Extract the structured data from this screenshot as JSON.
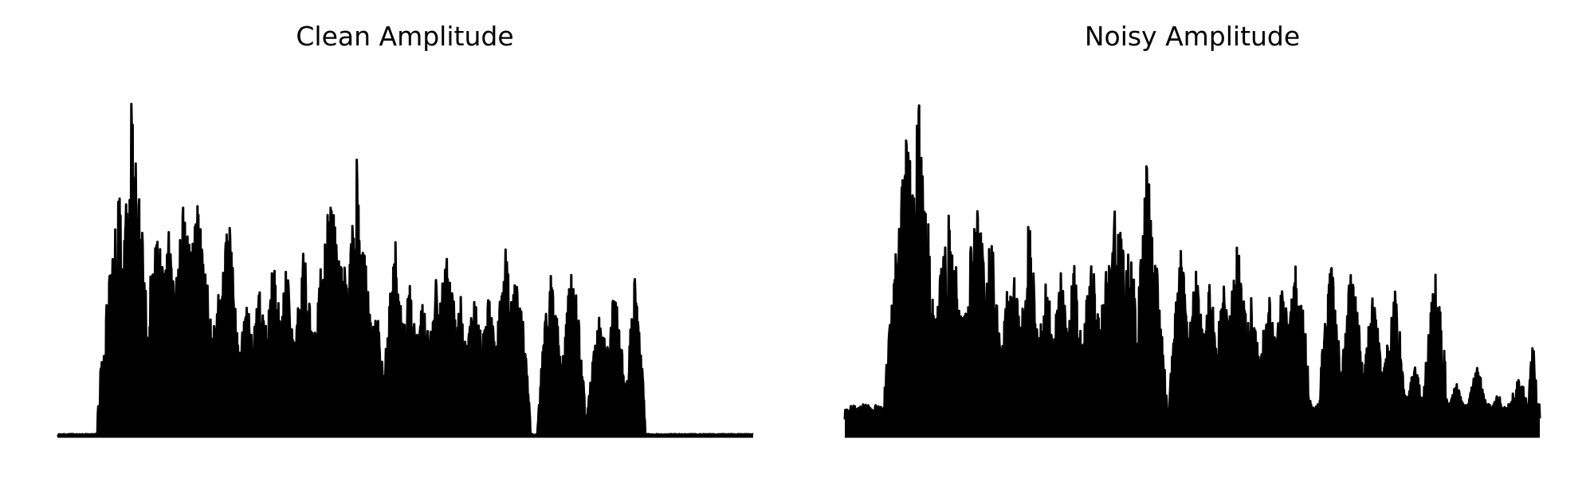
{
  "colors": {
    "background": "#ffffff",
    "line": "#000000"
  },
  "chart_data": [
    {
      "type": "area",
      "title": "Clean Amplitude",
      "axes_visible": false,
      "grid": false,
      "ylim": [
        0,
        1
      ],
      "clip_max": 1,
      "seed": 13,
      "base": 0.004,
      "floor_noise": 0.003,
      "n_points": 1600,
      "peaks": [
        [
          0.092,
          0.035,
          0.72,
          0.88
        ],
        [
          0.108,
          0.02,
          1.0,
          0.8
        ],
        [
          0.115,
          0.02,
          0.78,
          0.78
        ],
        [
          0.125,
          0.01,
          0.48,
          0.7
        ],
        [
          0.142,
          0.035,
          0.6,
          0.75
        ],
        [
          0.16,
          0.022,
          0.58,
          0.72
        ],
        [
          0.182,
          0.03,
          0.69,
          0.75
        ],
        [
          0.2,
          0.03,
          0.67,
          0.75
        ],
        [
          0.213,
          0.02,
          0.48,
          0.72
        ],
        [
          0.232,
          0.02,
          0.45,
          0.7
        ],
        [
          0.245,
          0.02,
          0.65,
          0.75
        ],
        [
          0.272,
          0.02,
          0.4,
          0.6
        ],
        [
          0.29,
          0.025,
          0.41,
          0.65
        ],
        [
          0.31,
          0.02,
          0.53,
          0.7
        ],
        [
          0.33,
          0.018,
          0.5,
          0.7
        ],
        [
          0.355,
          0.022,
          0.54,
          0.7
        ],
        [
          0.393,
          0.035,
          0.68,
          0.75
        ],
        [
          0.41,
          0.02,
          0.54,
          0.7
        ],
        [
          0.43,
          0.02,
          0.78,
          0.78
        ],
        [
          0.44,
          0.02,
          0.55,
          0.7
        ],
        [
          0.458,
          0.015,
          0.38,
          0.6
        ],
        [
          0.485,
          0.02,
          0.56,
          0.7
        ],
        [
          0.505,
          0.02,
          0.46,
          0.65
        ],
        [
          0.525,
          0.02,
          0.42,
          0.65
        ],
        [
          0.545,
          0.02,
          0.45,
          0.65
        ],
        [
          0.56,
          0.025,
          0.53,
          0.7
        ],
        [
          0.58,
          0.02,
          0.4,
          0.6
        ],
        [
          0.6,
          0.02,
          0.42,
          0.65
        ],
        [
          0.62,
          0.02,
          0.4,
          0.6
        ],
        [
          0.645,
          0.022,
          0.55,
          0.7
        ],
        [
          0.66,
          0.02,
          0.49,
          0.65
        ],
        [
          0.71,
          0.02,
          0.49,
          0.65
        ],
        [
          0.74,
          0.02,
          0.5,
          0.7
        ],
        [
          0.78,
          0.02,
          0.36,
          0.6
        ],
        [
          0.8,
          0.02,
          0.44,
          0.65
        ],
        [
          0.83,
          0.015,
          0.45,
          0.65
        ]
      ]
    },
    {
      "type": "area",
      "title": "Noisy Amplitude",
      "axes_visible": false,
      "grid": false,
      "ylim": [
        0,
        1
      ],
      "clip_max": 1,
      "seed": 71,
      "base": 0.04,
      "floor_noise": 0.05,
      "n_points": 1600,
      "peaks": [
        [
          0.01,
          0.015,
          0.04,
          0.6
        ],
        [
          0.025,
          0.02,
          0.06,
          0.6
        ],
        [
          0.045,
          0.02,
          0.05,
          0.6
        ],
        [
          0.06,
          0.02,
          0.07,
          0.6
        ],
        [
          0.075,
          0.02,
          0.1,
          0.6
        ],
        [
          0.09,
          0.035,
          0.86,
          0.85
        ],
        [
          0.107,
          0.02,
          1.0,
          0.8
        ],
        [
          0.12,
          0.015,
          0.6,
          0.7
        ],
        [
          0.15,
          0.035,
          0.62,
          0.75
        ],
        [
          0.19,
          0.03,
          0.67,
          0.75
        ],
        [
          0.21,
          0.02,
          0.58,
          0.7
        ],
        [
          0.24,
          0.025,
          0.5,
          0.7
        ],
        [
          0.265,
          0.02,
          0.61,
          0.72
        ],
        [
          0.29,
          0.02,
          0.45,
          0.65
        ],
        [
          0.31,
          0.02,
          0.48,
          0.68
        ],
        [
          0.33,
          0.018,
          0.5,
          0.7
        ],
        [
          0.355,
          0.022,
          0.52,
          0.7
        ],
        [
          0.39,
          0.035,
          0.66,
          0.75
        ],
        [
          0.41,
          0.02,
          0.56,
          0.7
        ],
        [
          0.435,
          0.02,
          0.78,
          0.78
        ],
        [
          0.445,
          0.02,
          0.55,
          0.7
        ],
        [
          0.485,
          0.02,
          0.55,
          0.7
        ],
        [
          0.505,
          0.02,
          0.47,
          0.65
        ],
        [
          0.525,
          0.02,
          0.44,
          0.65
        ],
        [
          0.545,
          0.02,
          0.43,
          0.65
        ],
        [
          0.565,
          0.025,
          0.54,
          0.7
        ],
        [
          0.585,
          0.02,
          0.4,
          0.6
        ],
        [
          0.61,
          0.02,
          0.42,
          0.65
        ],
        [
          0.63,
          0.02,
          0.44,
          0.65
        ],
        [
          0.65,
          0.022,
          0.53,
          0.7
        ],
        [
          0.7,
          0.02,
          0.49,
          0.65
        ],
        [
          0.73,
          0.02,
          0.51,
          0.7
        ],
        [
          0.76,
          0.02,
          0.4,
          0.6
        ],
        [
          0.79,
          0.02,
          0.44,
          0.65
        ],
        [
          0.82,
          0.02,
          0.2,
          0.5
        ],
        [
          0.85,
          0.02,
          0.47,
          0.65
        ],
        [
          0.88,
          0.02,
          0.15,
          0.5
        ],
        [
          0.91,
          0.02,
          0.2,
          0.5
        ],
        [
          0.94,
          0.02,
          0.12,
          0.5
        ],
        [
          0.97,
          0.02,
          0.18,
          0.5
        ],
        [
          0.99,
          0.008,
          0.28,
          0.6
        ]
      ]
    }
  ]
}
